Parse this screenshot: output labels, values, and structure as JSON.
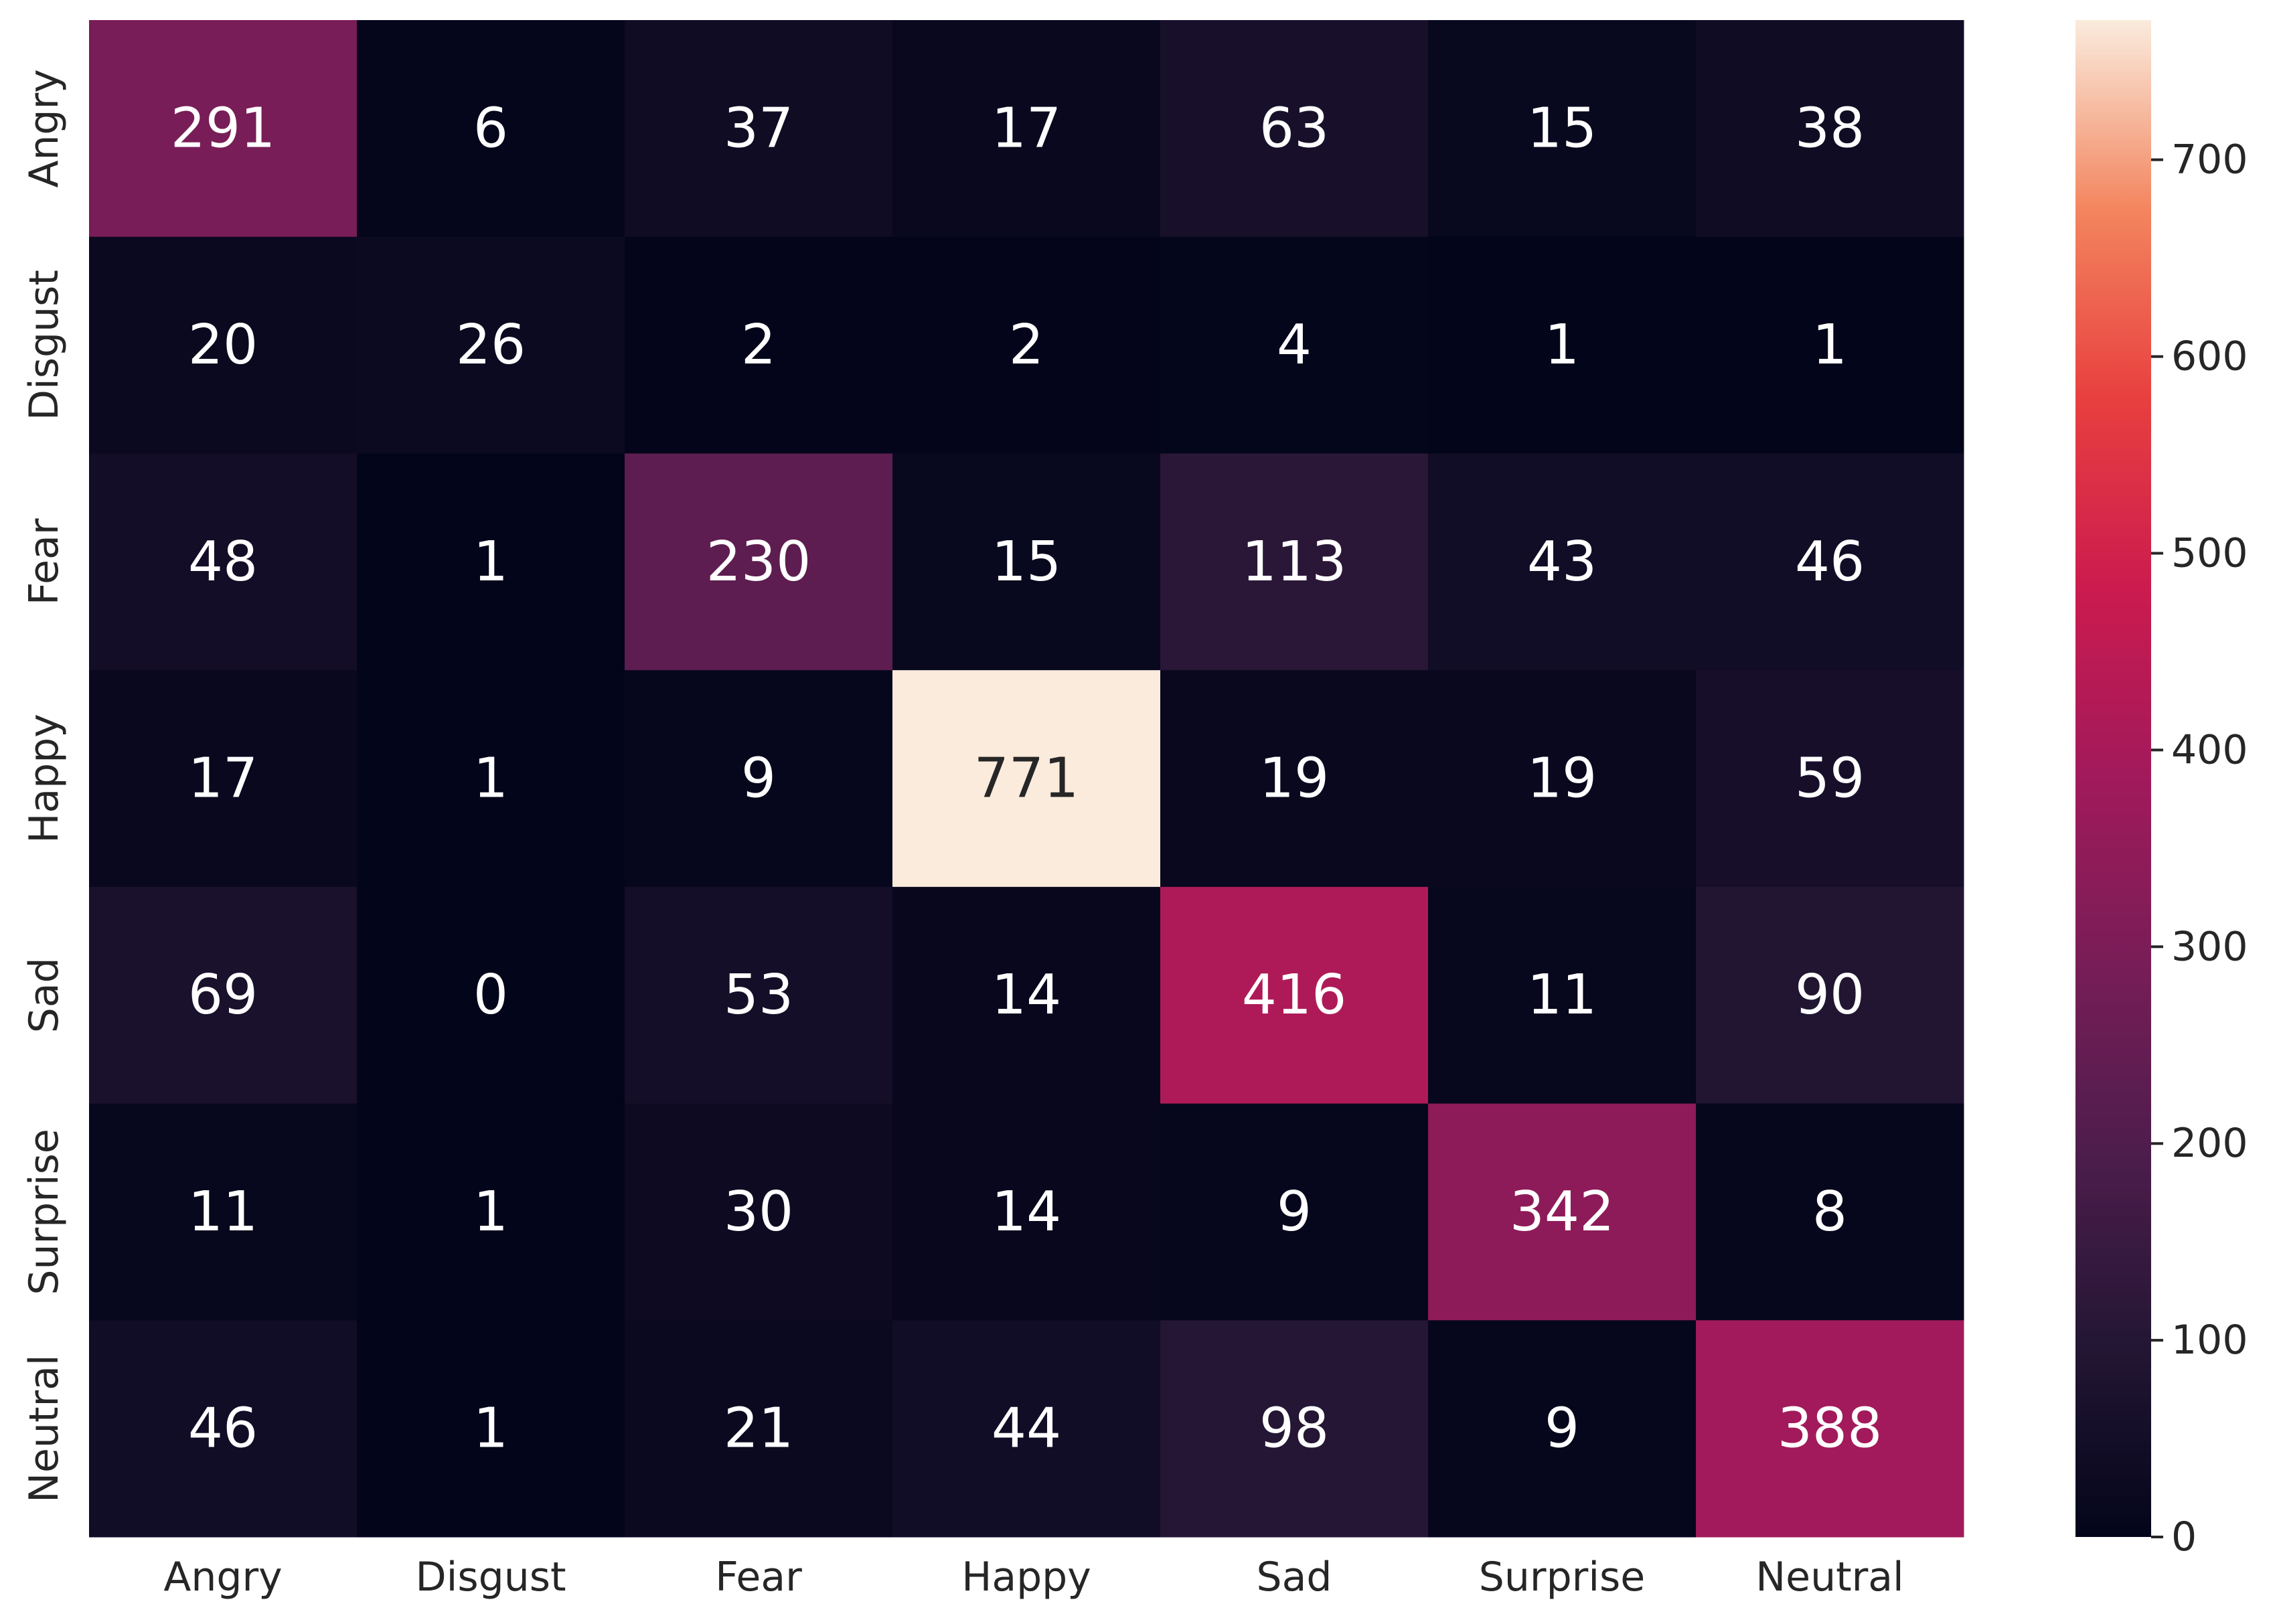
{
  "chart_data": {
    "type": "heatmap",
    "title": "",
    "xlabel": "",
    "ylabel": "",
    "x_categories": [
      "Angry",
      "Disgust",
      "Fear",
      "Happy",
      "Sad",
      "Surprise",
      "Neutral"
    ],
    "y_categories": [
      "Angry",
      "Disgust",
      "Fear",
      "Happy",
      "Sad",
      "Surprise",
      "Neutral"
    ],
    "values": [
      [
        291,
        6,
        37,
        17,
        63,
        15,
        38
      ],
      [
        20,
        26,
        2,
        2,
        4,
        1,
        1
      ],
      [
        48,
        1,
        230,
        15,
        113,
        43,
        46
      ],
      [
        17,
        1,
        9,
        771,
        19,
        19,
        59
      ],
      [
        69,
        0,
        53,
        14,
        416,
        11,
        90
      ],
      [
        11,
        1,
        30,
        14,
        9,
        342,
        8
      ],
      [
        46,
        1,
        21,
        44,
        98,
        9,
        388
      ]
    ],
    "colorbar": {
      "min": 0,
      "max": 771,
      "ticks": [
        0,
        100,
        200,
        300,
        400,
        500,
        600,
        700
      ],
      "colormap": "rocket"
    },
    "grid": false,
    "legend": "colorbar-right"
  }
}
